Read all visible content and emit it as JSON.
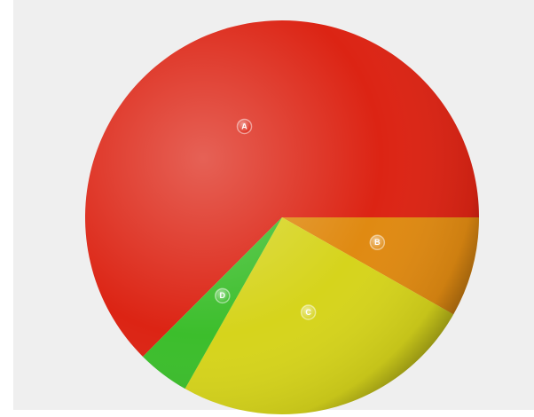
{
  "chart_data": {
    "type": "pie",
    "categories": [
      "A",
      "B",
      "C",
      "D"
    ],
    "values": [
      62.5,
      8.2,
      25.0,
      4.3
    ],
    "colors": [
      "#dc2414",
      "#e08a12",
      "#d6d41c",
      "#3cbe2c"
    ]
  }
}
